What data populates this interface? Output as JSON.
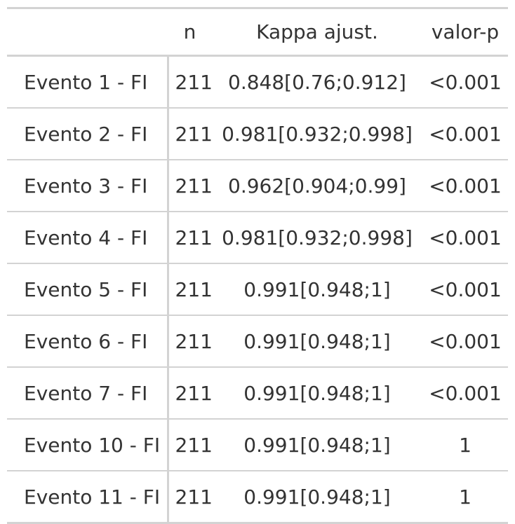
{
  "table": {
    "headers": [
      "",
      "n",
      "Kappa ajust.",
      "valor-p"
    ],
    "rows": [
      {
        "label": "Evento 1 - FI",
        "n": "211",
        "kappa": "0.848[0.76;0.912]",
        "p": "<0.001"
      },
      {
        "label": "Evento 2 - FI",
        "n": "211",
        "kappa": "0.981[0.932;0.998]",
        "p": "<0.001"
      },
      {
        "label": "Evento 3 - FI",
        "n": "211",
        "kappa": "0.962[0.904;0.99]",
        "p": "<0.001"
      },
      {
        "label": "Evento 4 - FI",
        "n": "211",
        "kappa": "0.981[0.932;0.998]",
        "p": "<0.001"
      },
      {
        "label": "Evento 5 - FI",
        "n": "211",
        "kappa": "0.991[0.948;1]",
        "p": "<0.001"
      },
      {
        "label": "Evento 6 - FI",
        "n": "211",
        "kappa": "0.991[0.948;1]",
        "p": "<0.001"
      },
      {
        "label": "Evento 7 - FI",
        "n": "211",
        "kappa": "0.991[0.948;1]",
        "p": "<0.001"
      },
      {
        "label": "Evento 10 - FI",
        "n": "211",
        "kappa": "0.991[0.948;1]",
        "p": "1"
      },
      {
        "label": "Evento 11 - FI",
        "n": "211",
        "kappa": "0.991[0.948;1]",
        "p": "1"
      }
    ]
  },
  "colors": {
    "text": "#333333",
    "rule": "#d3d3d3",
    "background": "#ffffff"
  }
}
